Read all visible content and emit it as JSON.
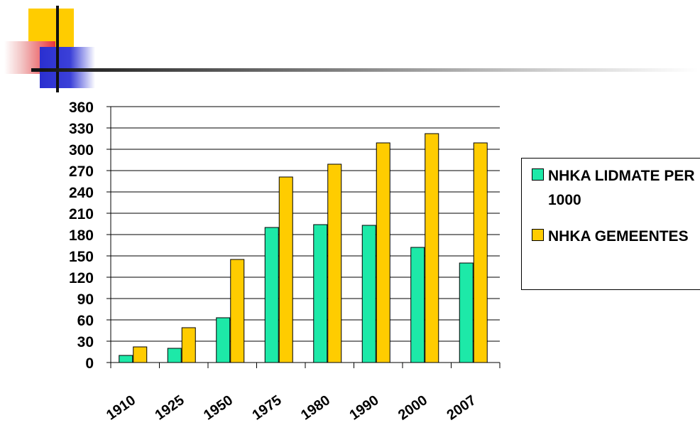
{
  "colors": {
    "series1": "#1de9a8",
    "series2": "#ffcc00",
    "axis": "#000000"
  },
  "chart_data": {
    "type": "bar",
    "categories": [
      "1910",
      "1925",
      "1950",
      "1975",
      "1980",
      "1990",
      "2000",
      "2007"
    ],
    "series": [
      {
        "name": "NHKA LIDMATE PER 1000",
        "values": [
          10,
          20,
          63,
          190,
          194,
          193,
          162,
          140
        ]
      },
      {
        "name": "NHKA GEMEENTES",
        "values": [
          22,
          49,
          145,
          261,
          279,
          309,
          322,
          309
        ]
      }
    ],
    "yticks": [
      "0",
      "30",
      "60",
      "90",
      "120",
      "150",
      "180",
      "210",
      "240",
      "270",
      "300",
      "330",
      "360"
    ],
    "ylim": [
      0,
      360
    ],
    "grid": true,
    "legend_position": "right"
  }
}
